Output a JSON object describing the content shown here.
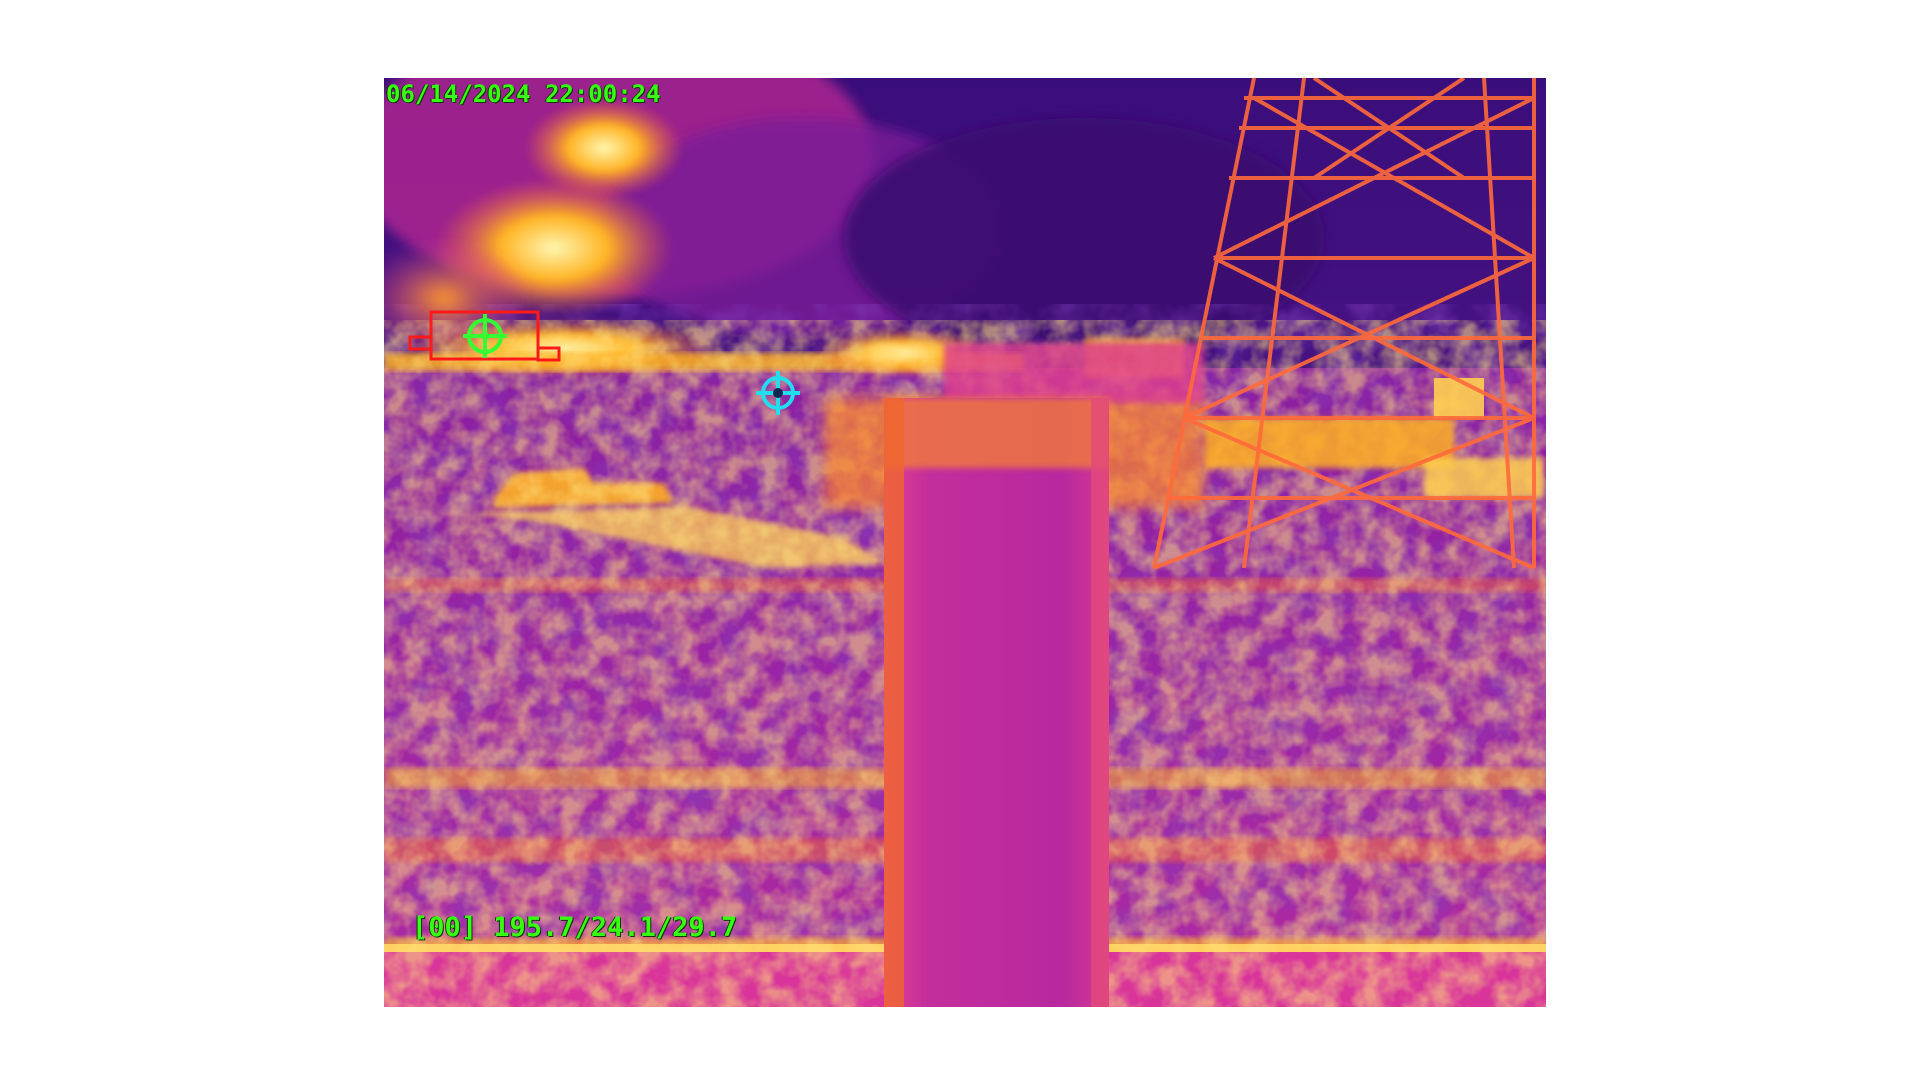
{
  "osd": {
    "timestamp": "06/14/2024 22:00:24",
    "readout": "[00] 195.7/24.1/29.7"
  },
  "colors": {
    "osd_text": "#39ff14",
    "target_box": "#ff1a1a",
    "target_reticle": "#33ff33",
    "aim_reticle": "#22ddee",
    "palette": [
      "#2a0a6e",
      "#5a1a8a",
      "#9a1ea0",
      "#d8349a",
      "#f2643a",
      "#ffb020",
      "#fff3a0"
    ]
  },
  "icons": {
    "target_marker": "crosshair-icon",
    "aim_marker": "crosshair-icon"
  }
}
